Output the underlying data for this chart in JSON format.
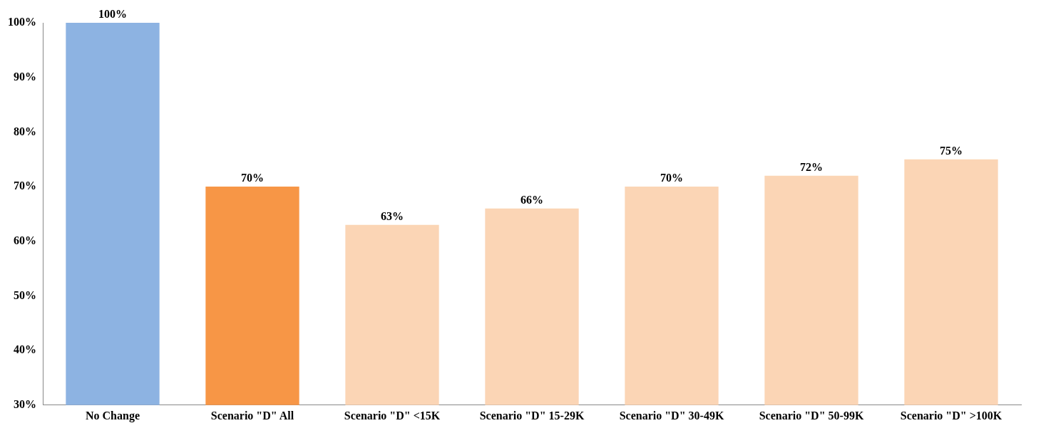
{
  "chart_data": {
    "type": "bar",
    "categories": [
      "No Change",
      "Scenario \"D\" All",
      "Scenario \"D\" <15K",
      "Scenario \"D\" 15-29K",
      "Scenario \"D\" 30-49K",
      "Scenario \"D\" 50-99K",
      "Scenario \"D\" >100K"
    ],
    "values": [
      100,
      70,
      63,
      66,
      70,
      72,
      75
    ],
    "colors": [
      "#8db3e2",
      "#f79646",
      "#fbd5b5",
      "#fbd5b5",
      "#fbd5b5",
      "#fbd5b5",
      "#fbd5b5"
    ],
    "value_labels": [
      "100%",
      "70%",
      "63%",
      "66%",
      "70%",
      "72%",
      "75%"
    ],
    "ylim": [
      30,
      100
    ],
    "yticks": [
      {
        "value": 30,
        "label": "30%"
      },
      {
        "value": 40,
        "label": "40%"
      },
      {
        "value": 50,
        "label": "50%"
      },
      {
        "value": 60,
        "label": "60%"
      },
      {
        "value": 70,
        "label": "70%"
      },
      {
        "value": 80,
        "label": "80%"
      },
      {
        "value": 90,
        "label": "90%"
      },
      {
        "value": 100,
        "label": "100%"
      }
    ],
    "grid": false,
    "legend": false
  }
}
